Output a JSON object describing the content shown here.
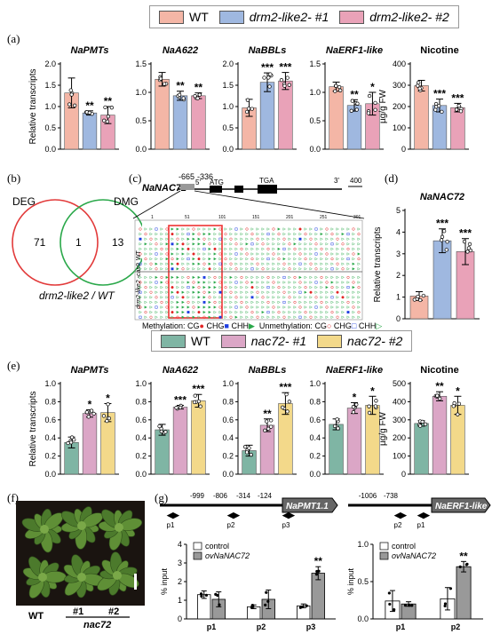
{
  "legend_top": {
    "items": [
      {
        "name": "WT",
        "color": "#f4b6a6"
      },
      {
        "name": "drm2-like2- #1",
        "color": "#9fb8e0"
      },
      {
        "name": "drm2-like2- #2",
        "color": "#e9a2b8"
      }
    ]
  },
  "legend_mid": {
    "items": [
      {
        "name": "WT",
        "color": "#7fb5a4"
      },
      {
        "name": "nac72- #1",
        "color": "#dba6c6"
      },
      {
        "name": "nac72- #2",
        "color": "#f3d98a"
      }
    ]
  },
  "panel_labels": {
    "a": "(a)",
    "b": "(b)",
    "c": "(c)",
    "d": "(d)",
    "e": "(e)",
    "f": "(f)",
    "g": "(g)"
  },
  "axis_labels": {
    "relative": "Relative transcripts",
    "nicotine": "µg/g FW",
    "input": "% input"
  },
  "venn": {
    "deg": "DEG",
    "dmg": "DMG",
    "left": "71",
    "mid": "1",
    "right": "13",
    "caption": "drm2-like2 / WT"
  },
  "gene_model": {
    "name": "NaNAC72",
    "pos1": "-665",
    "pos2": "-336",
    "five": "5'",
    "three": "3'",
    "atg": "ATG",
    "tga": "TGA",
    "scale": "400",
    "rows": [
      "WT",
      "drm2-like2 -cas9"
    ],
    "ticks": [
      "1",
      "51",
      "101",
      "151",
      "201",
      "251",
      "301"
    ]
  },
  "methylation_key": {
    "meth": "Methylation:",
    "unmeth": "Unmethylation:",
    "cg": "CG",
    "chg": "CHG",
    "chh": "CHH"
  },
  "photo": {
    "wt": "WT",
    "n1": "#1",
    "n2": "#2",
    "group": "nac72"
  },
  "promoter1": {
    "gene": "NaPMT1.1",
    "pos": [
      "-999",
      "-806",
      "-314",
      "-124"
    ],
    "primers": [
      "p1",
      "p2",
      "p3"
    ]
  },
  "promoter2": {
    "gene": "NaERF1-like",
    "pos": [
      "-1006",
      "-738"
    ],
    "primers": [
      "p2",
      "p1"
    ]
  },
  "chip_legend": [
    "control",
    "ovNaNAC72"
  ],
  "chart_data": [
    {
      "type": "bar",
      "panel": "a",
      "title": "NaPMTs",
      "categories": [
        "WT",
        "drm2-like2- #1",
        "drm2-like2- #2"
      ],
      "values": [
        1.32,
        0.85,
        0.8
      ],
      "errors": [
        0.35,
        0.05,
        0.2
      ],
      "sig": [
        "",
        "**",
        "**"
      ],
      "ylim": [
        0,
        2.0
      ],
      "yticks": [
        "0.0",
        "0.5",
        "1.0",
        "1.5",
        "2.0"
      ],
      "ylabel": "Relative transcripts"
    },
    {
      "type": "bar",
      "panel": "a",
      "title": "NaA622",
      "categories": [
        "WT",
        "drm2-like2- #1",
        "drm2-like2- #2"
      ],
      "values": [
        1.23,
        0.94,
        0.94
      ],
      "errors": [
        0.12,
        0.08,
        0.05
      ],
      "sig": [
        "",
        "**",
        "**"
      ],
      "ylim": [
        0,
        1.5
      ],
      "yticks": [
        "0.0",
        "0.5",
        "1.0",
        "1.5"
      ]
    },
    {
      "type": "bar",
      "panel": "a",
      "title": "NaBBLs",
      "categories": [
        "WT",
        "drm2-like2- #1",
        "drm2-like2- #2"
      ],
      "values": [
        0.97,
        1.57,
        1.6
      ],
      "errors": [
        0.2,
        0.22,
        0.2
      ],
      "sig": [
        "",
        "***",
        "***"
      ],
      "ylim": [
        0,
        2.0
      ],
      "yticks": [
        "0.0",
        "0.5",
        "1.0",
        "1.5",
        "2.0"
      ]
    },
    {
      "type": "bar",
      "panel": "a",
      "title": "NaERF1-like",
      "categories": [
        "WT",
        "drm2-like2- #1",
        "drm2-like2- #2"
      ],
      "values": [
        1.1,
        0.77,
        0.8
      ],
      "errors": [
        0.08,
        0.1,
        0.2
      ],
      "sig": [
        "",
        "**",
        "*"
      ],
      "ylim": [
        0,
        1.5
      ],
      "yticks": [
        "0.0",
        "0.5",
        "1.0",
        "1.5"
      ]
    },
    {
      "type": "bar",
      "panel": "a",
      "title": "Nicotine",
      "categories": [
        "WT",
        "drm2-like2- #1",
        "drm2-like2- #2"
      ],
      "values": [
        298,
        205,
        195
      ],
      "errors": [
        25,
        30,
        20
      ],
      "sig": [
        "",
        "***",
        "***"
      ],
      "ylim": [
        0,
        400
      ],
      "yticks": [
        "0",
        "100",
        "200",
        "300",
        "400"
      ],
      "ylabel": "µg/g FW"
    },
    {
      "type": "bar",
      "panel": "d",
      "title": "NaNAC72",
      "categories": [
        "WT",
        "drm2-like2- #1",
        "drm2-like2- #2"
      ],
      "values": [
        1.05,
        3.6,
        3.1
      ],
      "errors": [
        0.2,
        0.55,
        0.6
      ],
      "sig": [
        "",
        "***",
        "***"
      ],
      "ylim": [
        0,
        5
      ],
      "yticks": [
        "0",
        "1",
        "2",
        "3",
        "4",
        "5"
      ],
      "ylabel": "Relative transcripts"
    },
    {
      "type": "bar",
      "panel": "e",
      "title": "NaPMTs",
      "categories": [
        "WT",
        "nac72- #1",
        "nac72- #2"
      ],
      "values": [
        0.35,
        0.67,
        0.68
      ],
      "errors": [
        0.06,
        0.04,
        0.1
      ],
      "sig": [
        "",
        "*",
        "*"
      ],
      "ylim": [
        0,
        1.0
      ],
      "yticks": [
        "0.0",
        "0.2",
        "0.4",
        "0.6",
        "0.8",
        "1.0"
      ],
      "ylabel": "Relative transcripts"
    },
    {
      "type": "bar",
      "panel": "e",
      "title": "NaA622",
      "categories": [
        "WT",
        "nac72- #1",
        "nac72- #2"
      ],
      "values": [
        0.49,
        0.74,
        0.81
      ],
      "errors": [
        0.06,
        0.02,
        0.07
      ],
      "sig": [
        "",
        "***",
        "***"
      ],
      "ylim": [
        0,
        1.0
      ],
      "yticks": [
        "0.0",
        "0.2",
        "0.4",
        "0.6",
        "0.8",
        "1.0"
      ]
    },
    {
      "type": "bar",
      "panel": "e",
      "title": "NaBBLs",
      "categories": [
        "WT",
        "nac72- #1",
        "nac72- #2"
      ],
      "values": [
        0.26,
        0.54,
        0.78
      ],
      "errors": [
        0.06,
        0.07,
        0.12
      ],
      "sig": [
        "",
        "**",
        "***"
      ],
      "ylim": [
        0,
        1.0
      ],
      "yticks": [
        "0.0",
        "0.2",
        "0.4",
        "0.6",
        "0.8",
        "1.0"
      ]
    },
    {
      "type": "bar",
      "panel": "e",
      "title": "NaERF1-like",
      "categories": [
        "WT",
        "nac72- #1",
        "nac72- #2"
      ],
      "values": [
        0.55,
        0.73,
        0.76
      ],
      "errors": [
        0.06,
        0.06,
        0.1
      ],
      "sig": [
        "",
        "*",
        "*"
      ],
      "ylim": [
        0,
        1.0
      ],
      "yticks": [
        "0.0",
        "0.2",
        "0.4",
        "0.6",
        "0.8",
        "1.0"
      ]
    },
    {
      "type": "bar",
      "panel": "e",
      "title": "Nicotine",
      "categories": [
        "WT",
        "nac72- #1",
        "nac72- #2"
      ],
      "values": [
        280,
        430,
        380
      ],
      "errors": [
        15,
        25,
        50
      ],
      "sig": [
        "",
        "**",
        "*"
      ],
      "ylim": [
        0,
        500
      ],
      "yticks": [
        "0",
        "100",
        "200",
        "300",
        "400",
        "500"
      ],
      "ylabel": "µg/g FW"
    },
    {
      "type": "bar",
      "panel": "g",
      "title": "",
      "categories": [
        "p1",
        "p2",
        "p3"
      ],
      "series": [
        {
          "name": "control",
          "values": [
            1.3,
            0.65,
            0.7
          ]
        },
        {
          "name": "ovNaNAC72",
          "values": [
            1.05,
            1.05,
            2.45
          ]
        }
      ],
      "errors": [
        [
          0.2,
          0.1,
          0.1
        ],
        [
          0.4,
          0.5,
          0.35
        ]
      ],
      "sig": [
        "",
        "",
        "**"
      ],
      "ylim": [
        0,
        4
      ],
      "yticks": [
        "0",
        "1",
        "2",
        "3",
        "4"
      ],
      "ylabel": "% input"
    },
    {
      "type": "bar",
      "panel": "g",
      "title": "",
      "categories": [
        "p1",
        "p2"
      ],
      "series": [
        {
          "name": "control",
          "values": [
            0.24,
            0.27
          ]
        },
        {
          "name": "ovNaNAC72",
          "values": [
            0.2,
            0.7
          ]
        }
      ],
      "errors": [
        [
          0.14,
          0.15
        ],
        [
          0.03,
          0.07
        ]
      ],
      "sig": [
        "",
        "**"
      ],
      "ylim": [
        0,
        1.0
      ],
      "yticks": [
        "0.0",
        "0.5",
        "1.0"
      ],
      "ylabel": "% input"
    }
  ]
}
